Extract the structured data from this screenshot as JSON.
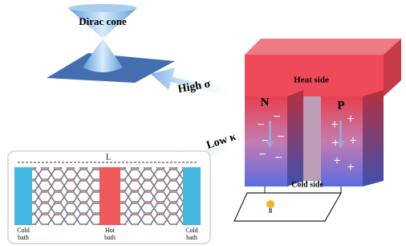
{
  "dirac_label": "Dirac cone",
  "high_sigma": "High σ",
  "low_kappa": "Low κ",
  "device": {
    "heat_side": "Heat side",
    "cold_side": "Cold side",
    "n_leg": "N",
    "p_leg": "P"
  },
  "inset": {
    "length_label": "L",
    "left_bath": [
      "Cold",
      "bath"
    ],
    "middle_bath": [
      "Hot",
      "bath"
    ],
    "right_bath": [
      "Cold",
      "bath"
    ]
  }
}
